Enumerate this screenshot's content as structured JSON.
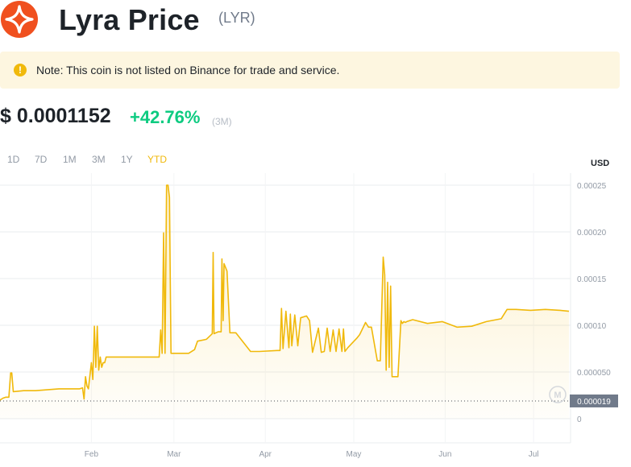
{
  "header": {
    "title": "Lyra Price",
    "symbol": "(LYR)",
    "logo_color": "#f0501f"
  },
  "note": {
    "icon": "exclamation-icon",
    "text": "Note: This coin is not listed on Binance for trade and service."
  },
  "price": {
    "value": "$ 0.0001152",
    "change": "+42.76%",
    "period": "(3M)",
    "change_color": "#0ecb81"
  },
  "ranges": [
    {
      "label": "1D",
      "active": false
    },
    {
      "label": "7D",
      "active": false
    },
    {
      "label": "1M",
      "active": false
    },
    {
      "label": "3M",
      "active": false
    },
    {
      "label": "1Y",
      "active": false
    },
    {
      "label": "YTD",
      "active": true
    }
  ],
  "accent_color": "#f0b90b",
  "chart_data": {
    "type": "area",
    "currency_label": "USD",
    "y_ticks": [
      "0.00025",
      "0.00020",
      "0.00015",
      "0.00010",
      "0.000050",
      "0"
    ],
    "y_tick_values": [
      0.00025,
      0.0002,
      0.00015,
      0.0001,
      5e-05,
      0
    ],
    "ylim": [
      0,
      0.00025
    ],
    "x_ticks": [
      "Feb",
      "Mar",
      "Apr",
      "May",
      "Jun",
      "Jul"
    ],
    "x_tick_days": [
      31,
      59,
      90,
      120,
      151,
      181
    ],
    "xlim": [
      0,
      193
    ],
    "baseline_label": "0.000019",
    "baseline_value": 1.9e-05,
    "grid": true,
    "series": [
      {
        "x": [
          0,
          1,
          2,
          3,
          3.6,
          4,
          4.5,
          8,
          12,
          20,
          27,
          28,
          28.5,
          29,
          29.5,
          30,
          31,
          31.5,
          32,
          32.5,
          33,
          33.5,
          34,
          34.5,
          35,
          35.5,
          36,
          37,
          40,
          45,
          52,
          54,
          54.5,
          55,
          55.5,
          56,
          56.5,
          57,
          57.5,
          58,
          60,
          64,
          66,
          67,
          70,
          72,
          72.3,
          72.6,
          74,
          75,
          75.3,
          75.7,
          76,
          77,
          78,
          78.3,
          79,
          80,
          85,
          87,
          88,
          94,
          95,
          95.5,
          96,
          97,
          98,
          98.5,
          99,
          100,
          101,
          102,
          104,
          105,
          106,
          108,
          109,
          110,
          111,
          112,
          113,
          114,
          115,
          116,
          116.5,
          117,
          118,
          121,
          122,
          124,
          125,
          126,
          128,
          129,
          130,
          130.5,
          131,
          131.5,
          132,
          132.5,
          133,
          134,
          135,
          136,
          136.5,
          137,
          137.5,
          138,
          140,
          145,
          150,
          155,
          160,
          165,
          170,
          172,
          175,
          180,
          185,
          190,
          193
        ],
        "values": [
          2e-05,
          2.2e-05,
          2.3e-05,
          2.3e-05,
          4.9e-05,
          4.9e-05,
          2.9e-05,
          3e-05,
          3e-05,
          3.2e-05,
          3.2e-05,
          3.3e-05,
          2.1e-05,
          4.5e-05,
          3.5e-05,
          3.2e-05,
          6e-05,
          4.2e-05,
          9.9e-05,
          5.5e-05,
          9.9e-05,
          5.2e-05,
          6.6e-05,
          5.5e-05,
          6e-05,
          6e-05,
          6.6e-05,
          6.6e-05,
          6.6e-05,
          6.6e-05,
          6.6e-05,
          6.6e-05,
          9.5e-05,
          7e-05,
          0.000199,
          7e-05,
          0.00025,
          0.00025,
          0.000237,
          7e-05,
          7e-05,
          7e-05,
          7.4e-05,
          8.3e-05,
          8.5e-05,
          9.1e-05,
          0.000178,
          9.1e-05,
          9.3e-05,
          9.3e-05,
          0.000171,
          0.000105,
          0.000166,
          0.000158,
          9.2e-05,
          9.2e-05,
          9.2e-05,
          9.2e-05,
          7.2e-05,
          7.2e-05,
          7.2e-05,
          7.3e-05,
          7.3e-05,
          0.000118,
          7.5e-05,
          0.000115,
          7.6e-05,
          0.000112,
          7.8e-05,
          0.000111,
          7.8e-05,
          0.000108,
          0.00011,
          0.000105,
          7.1e-05,
          9.7e-05,
          7.1e-05,
          7.2e-05,
          9.7e-05,
          7.2e-05,
          9.5e-05,
          7.2e-05,
          9.6e-05,
          7.2e-05,
          9.6e-05,
          7.2e-05,
          7.6e-05,
          8.6e-05,
          9e-05,
          0.000103,
          9.8e-05,
          9.8e-05,
          6.2e-05,
          6.2e-05,
          0.000173,
          0.000154,
          5.2e-05,
          0.000146,
          5.5e-05,
          0.000142,
          4.5e-05,
          4.5e-05,
          4.5e-05,
          0.000105,
          0.000102,
          0.000104,
          0.000103,
          0.000104,
          0.000106,
          0.000102,
          0.000104,
          9.8e-05,
          9.9e-05,
          0.000104,
          0.000107,
          0.000117,
          0.000117,
          0.000116,
          0.000117,
          0.000116,
          0.000115
        ]
      }
    ]
  }
}
